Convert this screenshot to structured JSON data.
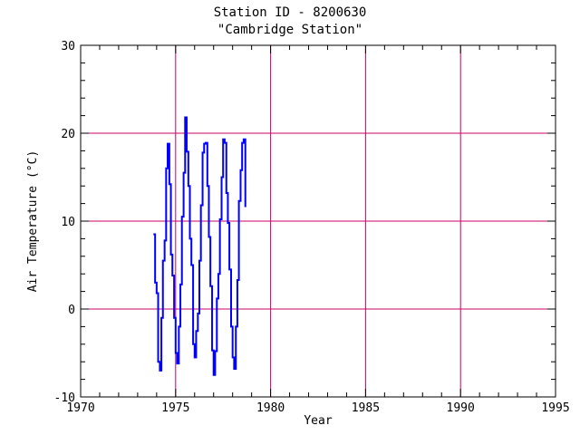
{
  "chart_data": {
    "type": "line",
    "title": "Station ID - 8200630",
    "subtitle": "\"Cambridge Station\"",
    "xlabel": "Year",
    "ylabel": "Air Temperature (°C)",
    "xlim": [
      1970,
      1995
    ],
    "ylim": [
      -10,
      30
    ],
    "xticks": [
      1970,
      1975,
      1980,
      1985,
      1990,
      1995
    ],
    "yticks": [
      -10,
      0,
      10,
      20,
      30
    ],
    "x_tick_labels": [
      "1970",
      "1975",
      "1980",
      "1985",
      "1990",
      "1995"
    ],
    "y_tick_labels": [
      "-10",
      "0",
      "10",
      "20",
      "30"
    ],
    "grid": true,
    "series": [
      {
        "color": "#0000ff",
        "step": true,
        "x": [
          1973.83,
          1973.92,
          1974.0,
          1974.08,
          1974.17,
          1974.25,
          1974.33,
          1974.42,
          1974.5,
          1974.58,
          1974.67,
          1974.75,
          1974.83,
          1974.92,
          1975.0,
          1975.08,
          1975.17,
          1975.25,
          1975.33,
          1975.42,
          1975.5,
          1975.58,
          1975.67,
          1975.75,
          1975.83,
          1975.92,
          1976.0,
          1976.08,
          1976.17,
          1976.25,
          1976.33,
          1976.42,
          1976.5,
          1976.58,
          1976.67,
          1976.75,
          1976.83,
          1976.92,
          1977.0,
          1977.08,
          1977.17,
          1977.25,
          1977.33,
          1977.42,
          1977.5,
          1977.58,
          1977.67,
          1977.75,
          1977.83,
          1977.92,
          1978.0,
          1978.08,
          1978.17,
          1978.25,
          1978.33,
          1978.42,
          1978.5,
          1978.58,
          1978.67
        ],
        "y": [
          8.5,
          3.0,
          1.8,
          -6.0,
          -7.0,
          -1.0,
          5.5,
          7.8,
          16.0,
          18.8,
          14.2,
          6.2,
          3.8,
          -1.0,
          -5.0,
          -6.2,
          -2.0,
          2.8,
          10.5,
          15.5,
          21.8,
          17.9,
          14.0,
          8.0,
          5.0,
          -4.0,
          -5.5,
          -2.5,
          -0.5,
          5.5,
          11.8,
          17.8,
          18.8,
          18.9,
          14.0,
          8.2,
          2.6,
          -4.7,
          -7.5,
          -4.8,
          1.2,
          4.0,
          10.2,
          15.0,
          19.3,
          18.9,
          13.2,
          9.8,
          4.5,
          -2.0,
          -5.5,
          -6.8,
          -2.0,
          3.3,
          12.3,
          15.8,
          18.9,
          19.3,
          11.6
        ]
      }
    ]
  }
}
